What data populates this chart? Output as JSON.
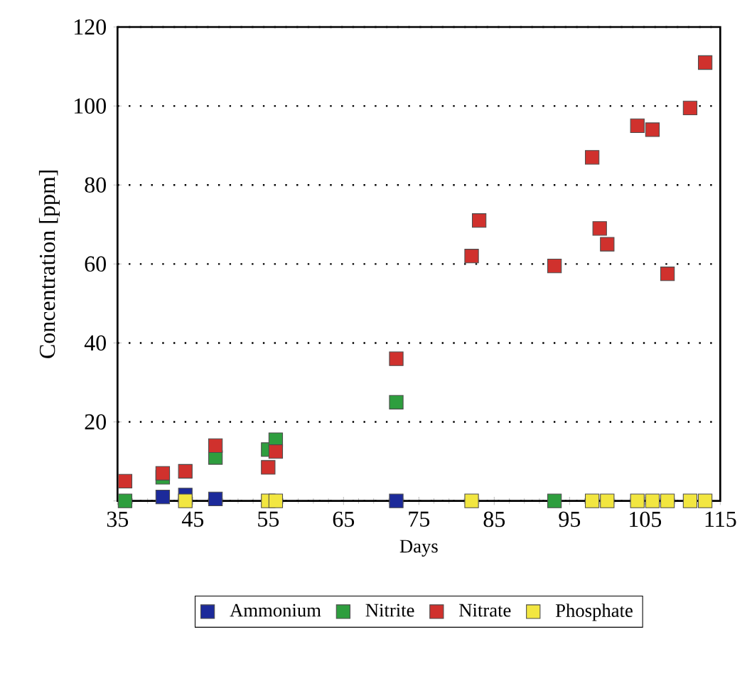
{
  "chart_data": {
    "type": "scatter",
    "xlabel": "Days",
    "ylabel": "Concentration [ppm]",
    "xlim": [
      35,
      115
    ],
    "ylim": [
      0,
      120
    ],
    "xticks": [
      35,
      45,
      55,
      65,
      75,
      85,
      95,
      105,
      115
    ],
    "yticks": [
      {
        "value": 0,
        "label": null
      },
      20,
      40,
      60,
      80,
      100,
      120
    ],
    "grid": "y",
    "legend": "bottom",
    "marker": "square",
    "series": [
      {
        "name": "Ammonium",
        "color": "#1c2a9a",
        "x": [
          41,
          44,
          48,
          72
        ],
        "values": [
          1,
          1.5,
          0.5,
          0
        ]
      },
      {
        "name": "Nitrite",
        "color": "#2e9e3e",
        "x": [
          36,
          41,
          48,
          55,
          56,
          72,
          93
        ],
        "values": [
          0,
          6,
          11,
          13,
          15.5,
          25,
          0
        ]
      },
      {
        "name": "Nitrate",
        "color": "#d0312d",
        "x": [
          36,
          41,
          44,
          48,
          55,
          56,
          72,
          82,
          83,
          93,
          98,
          99,
          100,
          104,
          106,
          108,
          111,
          113
        ],
        "values": [
          5,
          7,
          7.5,
          14,
          8.5,
          12.5,
          36,
          62,
          71,
          59.5,
          87,
          69,
          65,
          95,
          94,
          57.5,
          99.5,
          111
        ]
      },
      {
        "name": "Phosphate",
        "color": "#f2e640",
        "x": [
          44,
          55,
          56,
          82,
          98,
          100,
          104,
          106,
          108,
          111,
          113
        ],
        "values": [
          0,
          0,
          0,
          0,
          0,
          0,
          0,
          0,
          0,
          0,
          0
        ]
      }
    ]
  }
}
